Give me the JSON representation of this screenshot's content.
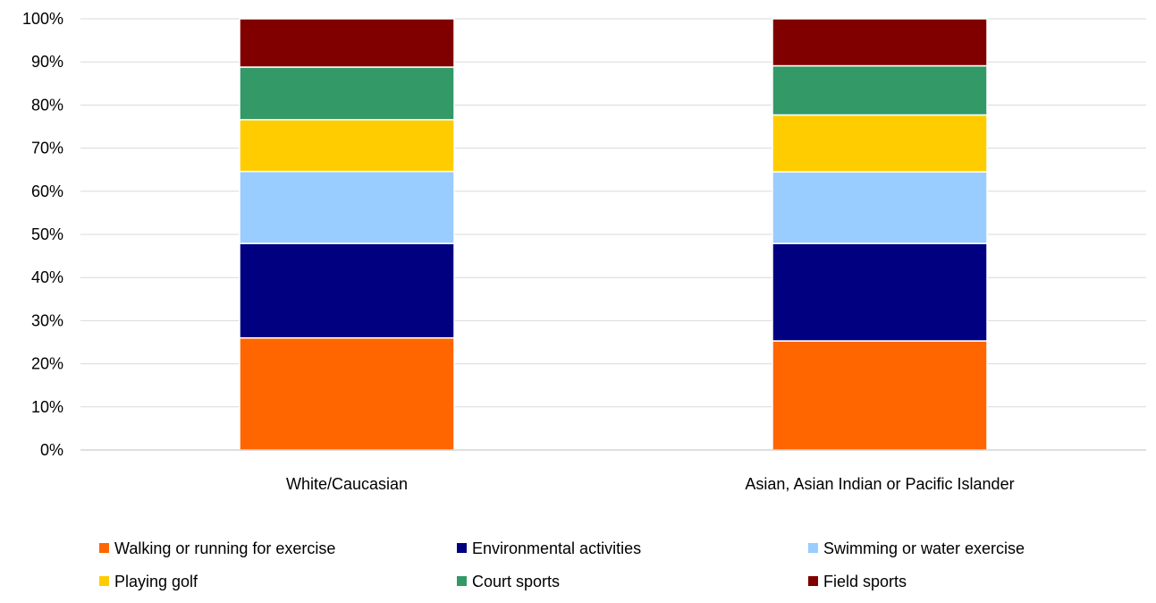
{
  "chart_data": {
    "type": "bar",
    "stacked": true,
    "percent": true,
    "categories": [
      "White/Caucasian",
      "Asian, Asian Indian or Pacific Islander"
    ],
    "series": [
      {
        "name": "Walking or running for exercise",
        "color": "#FF6600",
        "values": [
          26.0,
          25.3
        ]
      },
      {
        "name": "Environmental activities",
        "color": "#000080",
        "values": [
          21.9,
          22.6
        ]
      },
      {
        "name": "Swimming or water exercise",
        "color": "#99CCFF",
        "values": [
          16.7,
          16.6
        ]
      },
      {
        "name": "Playing golf",
        "color": "#FFCC00",
        "values": [
          12.0,
          13.2
        ]
      },
      {
        "name": "Court sports",
        "color": "#339966",
        "values": [
          12.2,
          11.4
        ]
      },
      {
        "name": "Field sports",
        "color": "#800000",
        "values": [
          11.2,
          10.9
        ]
      }
    ],
    "ylim": [
      0,
      100
    ],
    "yticks": [
      "0%",
      "10%",
      "20%",
      "30%",
      "40%",
      "50%",
      "60%",
      "70%",
      "80%",
      "90%",
      "100%"
    ],
    "grid": true,
    "legend_position": "bottom",
    "title": "",
    "xlabel": "",
    "ylabel": ""
  }
}
